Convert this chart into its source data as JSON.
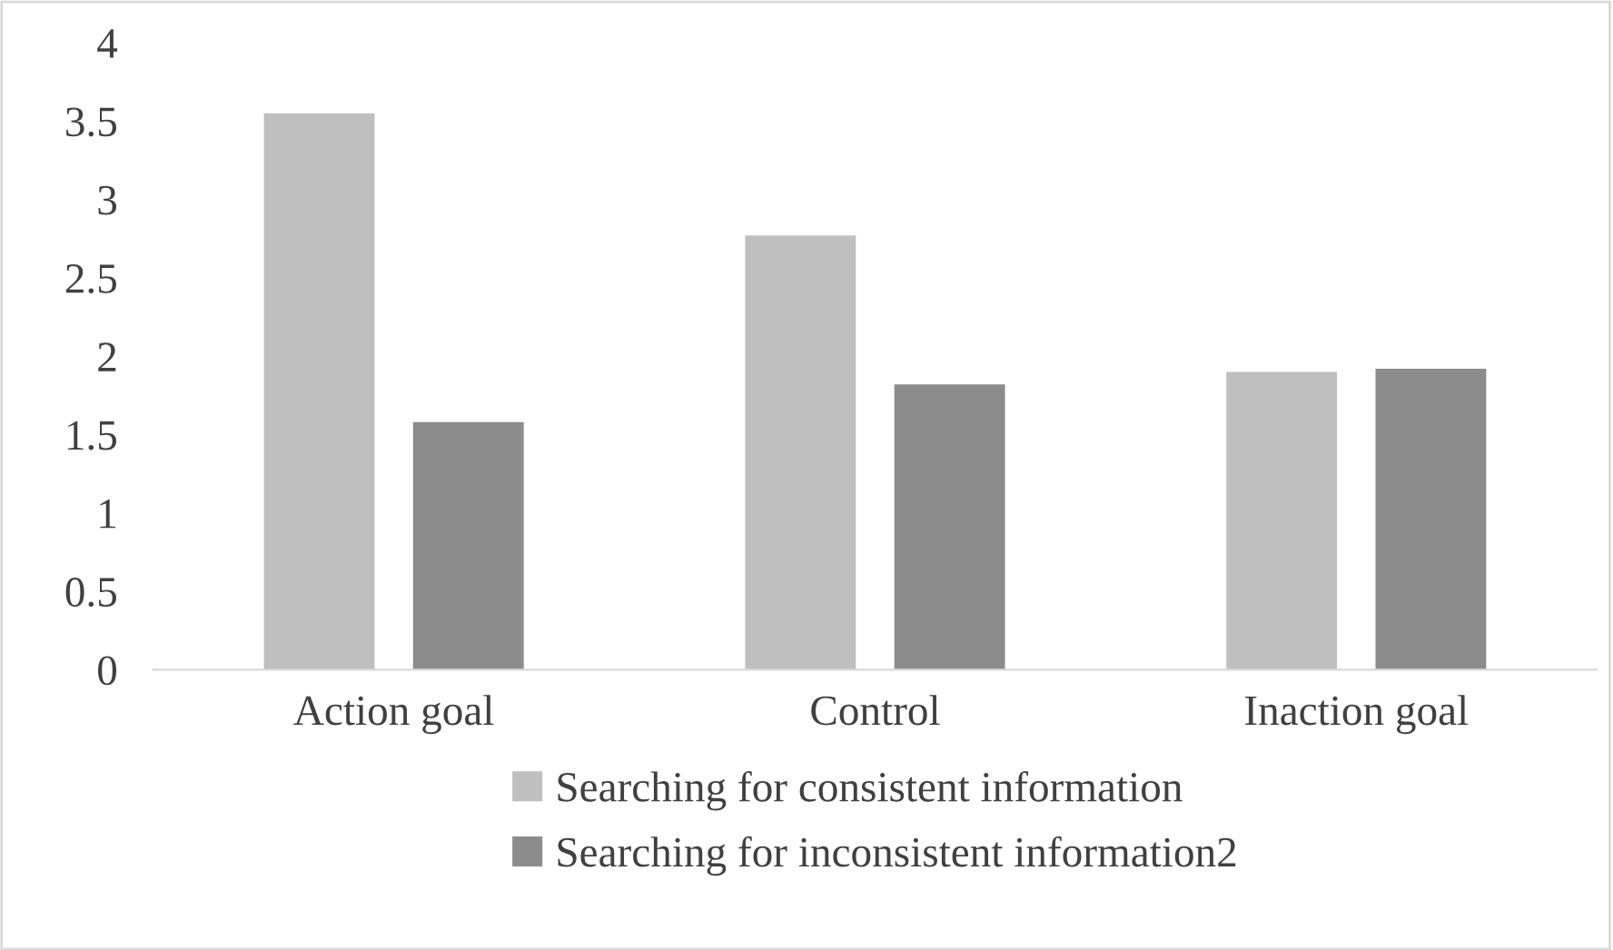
{
  "chart_data": {
    "type": "bar",
    "categories": [
      "Action goal",
      "Control",
      "Inaction goal"
    ],
    "series": [
      {
        "name": "Searching for consistent information",
        "color": "#bfbfbf",
        "values": [
          3.55,
          2.77,
          1.9
        ]
      },
      {
        "name": "Searching for inconsistent information2",
        "color": "#8c8c8c",
        "values": [
          1.58,
          1.82,
          1.92
        ]
      }
    ],
    "ylim": [
      0,
      4
    ],
    "yticks": [
      0,
      0.5,
      1,
      1.5,
      2,
      2.5,
      3,
      3.5,
      4
    ],
    "grid": false,
    "legend": "bottom"
  }
}
